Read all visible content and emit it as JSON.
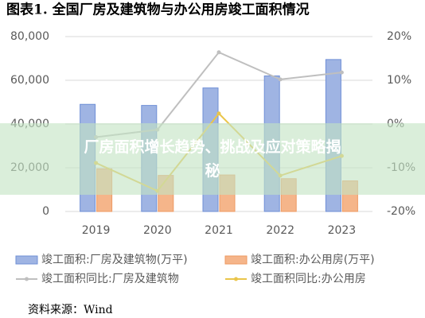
{
  "chart_data": {
    "type": "bar_line",
    "title": "图表1.  全国厂房及建筑物与办公用房竣工面积情况",
    "categories": [
      "2019",
      "2020",
      "2021",
      "2022",
      "2023"
    ],
    "series": [
      {
        "name": "竣工面积:厂房及建筑物(万平)",
        "type": "bar",
        "color": "#9fb4e3",
        "values": [
          49000,
          48500,
          56500,
          62000,
          69500
        ]
      },
      {
        "name": "竣工面积:办公用房(万平)",
        "type": "bar",
        "color": "#f5b58a",
        "values": [
          19500,
          16500,
          16700,
          15000,
          14000
        ]
      },
      {
        "name": "竣工面积同比:厂房及建筑物",
        "type": "line",
        "axis": "y2",
        "color": "#bfbfbf",
        "values": [
          -3,
          -1.3,
          16.4,
          10.2,
          11.8
        ]
      },
      {
        "name": "竣工面积同比:办公用房",
        "type": "line",
        "axis": "y2",
        "color": "#eac54a",
        "values": [
          -8.9,
          -15.3,
          2.4,
          -11.8,
          -7.3
        ]
      }
    ],
    "ylim": [
      0,
      80000
    ],
    "yticks": [
      0,
      {
        "value": 20000,
        "label": "20,000"
      },
      {
        "value": 40000,
        "label": "40,000"
      },
      {
        "value": 60000,
        "label": "60,000"
      },
      {
        "value": 80000,
        "label": "80,000"
      }
    ],
    "y2lim": [
      -20,
      20
    ],
    "y2ticks": [
      {
        "value": -20,
        "label": "-20%"
      },
      {
        "value": -10,
        "label": "-10%"
      },
      {
        "value": 0,
        "label": "0%"
      },
      {
        "value": 10,
        "label": "10%"
      },
      {
        "value": 20,
        "label": "20%"
      }
    ],
    "grid": true,
    "source": "资料来源：Wind"
  },
  "banner": "厂房面积增长趋势、挑战及应对策略揭秘"
}
